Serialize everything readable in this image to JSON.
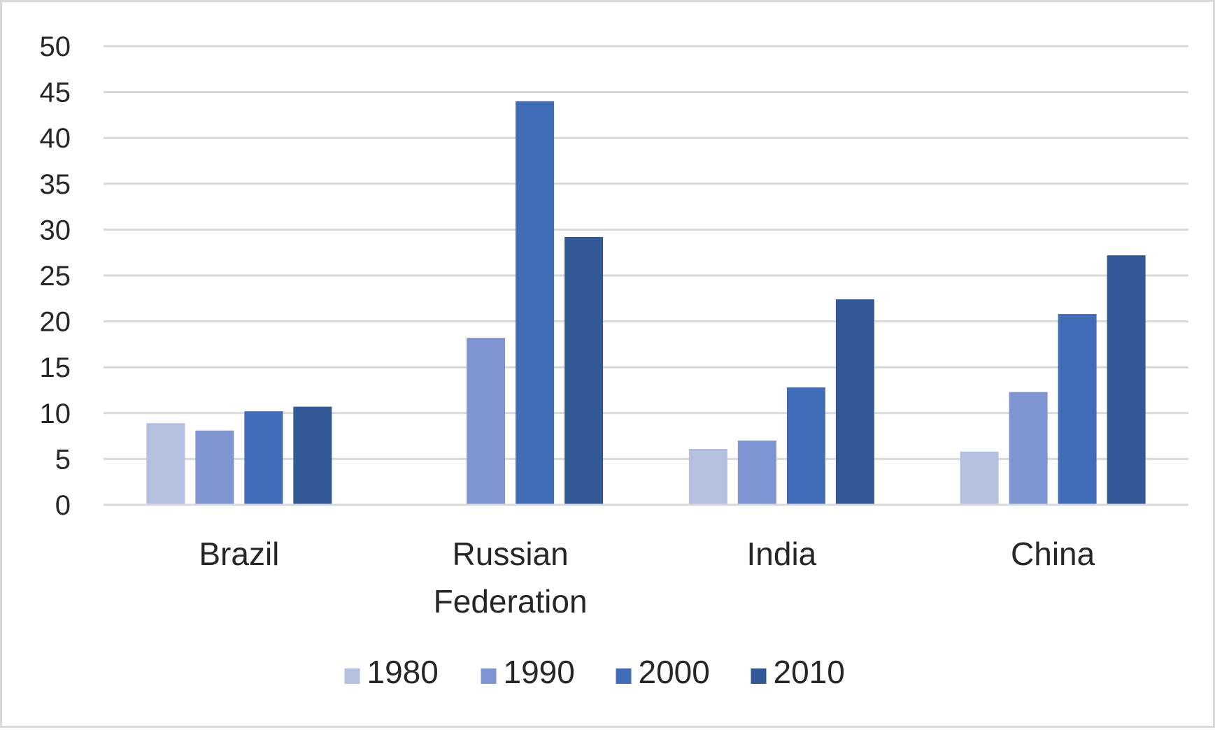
{
  "chart_data": {
    "type": "bar",
    "title": "",
    "xlabel": "",
    "ylabel": "",
    "categories": [
      "Brazil",
      "Russian Federation",
      "India",
      "China"
    ],
    "category_label_lines": [
      [
        "Brazil"
      ],
      [
        "Russian",
        "Federation"
      ],
      [
        "India"
      ],
      [
        "China"
      ]
    ],
    "series": [
      {
        "name": "1980",
        "values": [
          8.9,
          null,
          6.1,
          5.8
        ],
        "color": "#b4c0e0"
      },
      {
        "name": "1990",
        "values": [
          8.1,
          18.2,
          7.0,
          12.3
        ],
        "color": "#7e95d1"
      },
      {
        "name": "2000",
        "values": [
          10.2,
          44.0,
          12.8,
          20.8
        ],
        "color": "#416cb8"
      },
      {
        "name": "2010",
        "values": [
          10.7,
          29.2,
          22.4,
          27.2
        ],
        "color": "#325896"
      }
    ],
    "ylim": [
      0,
      50
    ],
    "yticks": [
      0,
      5,
      10,
      15,
      20,
      25,
      30,
      35,
      40,
      45,
      50
    ],
    "grid": true,
    "grid_color": "#d9d9d9",
    "legend_position": "bottom"
  }
}
